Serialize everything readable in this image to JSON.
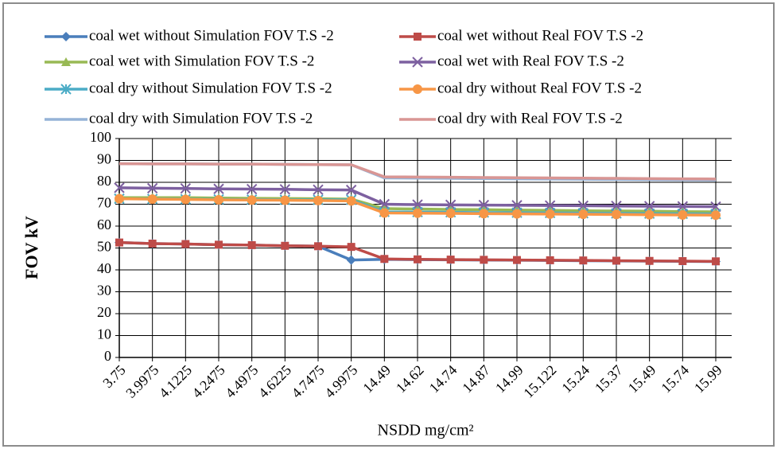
{
  "chart_data": {
    "type": "line",
    "y_label": "FOV kV",
    "x_label": "NSDD mg/cm²",
    "categories": [
      "3.75",
      "3.9975",
      "4.1225",
      "4.2475",
      "4.4975",
      "4.6225",
      "4.7475",
      "4.9975",
      "14.49",
      "14.62",
      "14.74",
      "14.87",
      "14.99",
      "15.122",
      "15.24",
      "15.37",
      "15.49",
      "15.74",
      "15.99"
    ],
    "ylim": [
      0,
      100
    ],
    "yticks": [
      0,
      10,
      20,
      30,
      40,
      50,
      60,
      70,
      80,
      90,
      100
    ],
    "grid": true,
    "series": [
      {
        "name": "coal wet without Simulation FOV T.S -2",
        "color": "#4a7ebb",
        "marker": "diamond",
        "values": [
          52.5,
          52,
          51.8,
          51.5,
          51.3,
          51,
          50.8,
          44.5,
          44.8,
          44.7,
          44.6,
          44.5,
          44.4,
          44.3,
          44.2,
          44.1,
          44,
          43.9,
          43.8
        ]
      },
      {
        "name": "coal wet without Real FOV T.S -2",
        "color": "#be4b48",
        "marker": "square",
        "values": [
          52.5,
          52,
          51.8,
          51.5,
          51.3,
          51,
          50.8,
          50.5,
          45,
          44.8,
          44.7,
          44.6,
          44.5,
          44.4,
          44.3,
          44.2,
          44.1,
          44,
          43.9
        ]
      },
      {
        "name": "coal wet with Simulation FOV T.S -2",
        "color": "#98b954",
        "marker": "triangle",
        "values": [
          73,
          73,
          73,
          72.8,
          72.7,
          72.6,
          72.5,
          72.3,
          68,
          67.8,
          67.6,
          67.5,
          67.3,
          67.2,
          67,
          66.9,
          66.8,
          66.6,
          66.5
        ]
      },
      {
        "name": "coal wet with Real FOV T.S -2",
        "color": "#7d60a0",
        "marker": "x",
        "values": [
          77.5,
          77.3,
          77.2,
          77,
          76.9,
          76.8,
          76.6,
          76.5,
          70,
          69.8,
          69.7,
          69.6,
          69.5,
          69.4,
          69.3,
          69.2,
          69.1,
          69,
          68.9
        ]
      },
      {
        "name": "coal dry without Simulation FOV T.S -2",
        "color": "#4bacc6",
        "marker": "star",
        "values": [
          72.5,
          72.4,
          72.3,
          72.2,
          72.1,
          72,
          72,
          72,
          66.5,
          66.4,
          66.3,
          66.2,
          66.1,
          66,
          65.9,
          65.8,
          65.7,
          65.6,
          65.5
        ]
      },
      {
        "name": "coal dry without Real FOV T.S -2",
        "color": "#f79646",
        "marker": "circle",
        "values": [
          72.5,
          72.3,
          72.2,
          72,
          71.9,
          71.8,
          71.7,
          71.5,
          66,
          65.9,
          65.8,
          65.7,
          65.6,
          65.5,
          65.4,
          65.3,
          65.2,
          65.1,
          65
        ]
      },
      {
        "name": "coal dry with Simulation FOV T.S -2",
        "color": "#95b3d7",
        "marker": "none",
        "values": [
          88.5,
          88.4,
          88.4,
          88.3,
          88.3,
          88.2,
          88.1,
          88,
          82,
          81.9,
          81.8,
          81.7,
          81.6,
          81.5,
          81.4,
          81.3,
          81.2,
          81.1,
          81
        ]
      },
      {
        "name": "coal dry with Real FOV T.S -2",
        "color": "#d99694",
        "marker": "none",
        "values": [
          88.5,
          88.4,
          88.4,
          88.3,
          88.3,
          88.2,
          88.1,
          88,
          82.5,
          82.4,
          82.3,
          82.2,
          82.1,
          82,
          81.9,
          81.8,
          81.7,
          81.6,
          81.5
        ]
      }
    ]
  }
}
